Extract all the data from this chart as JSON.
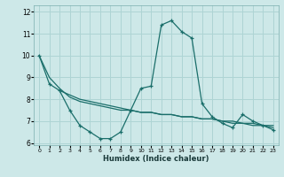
{
  "xlabel": "Humidex (Indice chaleur)",
  "background_color": "#cde8e8",
  "line_color": "#1a6e6a",
  "grid_color": "#aed4d4",
  "line1_x": [
    0,
    1,
    2,
    3,
    4,
    5,
    6,
    7,
    8,
    9,
    10,
    11,
    12,
    13,
    14,
    15,
    16,
    17,
    18,
    19,
    20,
    21,
    22,
    23
  ],
  "line1_y": [
    10.0,
    8.7,
    8.4,
    7.5,
    6.8,
    6.5,
    6.2,
    6.2,
    6.5,
    7.5,
    8.5,
    8.6,
    11.4,
    11.6,
    11.1,
    10.8,
    7.8,
    7.2,
    6.9,
    6.7,
    7.3,
    7.0,
    6.8,
    6.6
  ],
  "line2_x": [
    0,
    1,
    2,
    3,
    4,
    5,
    6,
    7,
    8,
    9,
    10,
    11,
    12,
    13,
    14,
    15,
    16,
    17,
    18,
    19,
    20,
    21,
    22,
    23
  ],
  "line2_y": [
    10.0,
    9.0,
    8.5,
    8.1,
    7.9,
    7.8,
    7.7,
    7.6,
    7.5,
    7.5,
    7.4,
    7.4,
    7.3,
    7.3,
    7.2,
    7.2,
    7.1,
    7.1,
    7.0,
    7.0,
    6.9,
    6.9,
    6.8,
    6.8
  ],
  "line3_x": [
    2,
    3,
    4,
    5,
    6,
    7,
    8,
    9,
    10,
    11,
    12,
    13,
    14,
    15,
    16,
    17,
    18,
    19,
    20,
    21,
    22,
    23
  ],
  "line3_y": [
    8.4,
    8.2,
    8.0,
    7.9,
    7.8,
    7.7,
    7.6,
    7.5,
    7.4,
    7.4,
    7.3,
    7.3,
    7.2,
    7.2,
    7.1,
    7.1,
    7.0,
    6.9,
    6.9,
    6.8,
    6.8,
    6.7
  ],
  "xlim": [
    -0.5,
    23.5
  ],
  "ylim": [
    5.9,
    12.3
  ],
  "yticks": [
    6,
    7,
    8,
    9,
    10,
    11,
    12
  ],
  "xticks": [
    0,
    1,
    2,
    3,
    4,
    5,
    6,
    7,
    8,
    9,
    10,
    11,
    12,
    13,
    14,
    15,
    16,
    17,
    18,
    19,
    20,
    21,
    22,
    23
  ]
}
